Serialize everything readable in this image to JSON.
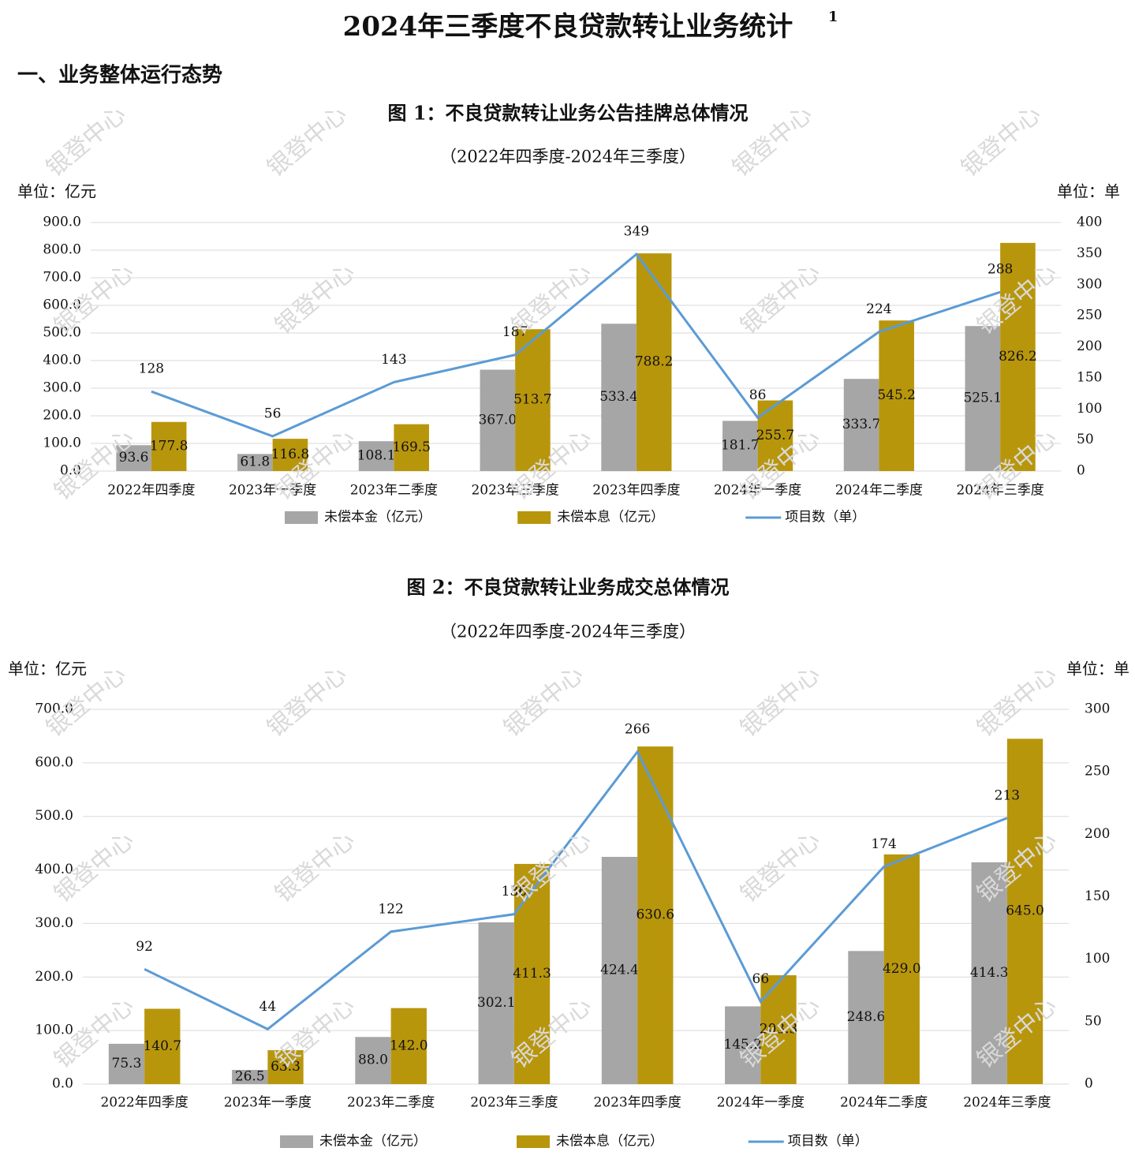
{
  "header": {
    "title": "2024年三季度不良贷款转让业务统计",
    "title_note": "1",
    "section": "一、业务整体运行态势",
    "watermark": "银登中心"
  },
  "chart_data": [
    {
      "type": "bar",
      "title": "图 1：不良贷款转让业务公告挂牌总体情况",
      "subtitle": "（2022年四季度-2024年三季度）",
      "y_unit": "单位：亿元",
      "y2_unit": "单位：单",
      "categories": [
        "2022年四季度",
        "2023年一季度",
        "2023年二季度",
        "2023年三季度",
        "2023年四季度",
        "2024年一季度",
        "2024年二季度",
        "2024年三季度"
      ],
      "series": [
        {
          "name": "未偿本金（亿元）",
          "type": "bar",
          "color": "#a6a6a6",
          "values": [
            93.6,
            61.8,
            108.1,
            367.0,
            533.4,
            181.7,
            333.7,
            525.1
          ],
          "value_labels": [
            "93.6",
            "61.8",
            "108.1",
            "367.0",
            "533.4",
            "181.7",
            "333.7",
            "525.1"
          ]
        },
        {
          "name": "未偿本息（亿元）",
          "type": "bar",
          "color": "#b8960c",
          "values": [
            177.8,
            116.8,
            169.5,
            513.7,
            788.2,
            255.7,
            545.2,
            826.2
          ],
          "value_labels": [
            "177.8",
            "116.8",
            "169.5",
            "513.7",
            "788.2",
            "255.7",
            "545.2",
            "826.2"
          ]
        },
        {
          "name": "项目数（单）",
          "type": "line",
          "axis": "y2",
          "color": "#5b9bd5",
          "values": [
            128,
            56,
            143,
            187,
            349,
            86,
            224,
            288
          ]
        }
      ],
      "ylim": [
        0,
        900
      ],
      "yticks": [
        {
          "value": 0,
          "label": "0.0"
        },
        {
          "value": 100,
          "label": "100.0"
        },
        {
          "value": 200,
          "label": "200.0"
        },
        {
          "value": 300,
          "label": "300.0"
        },
        {
          "value": 400,
          "label": "400.0"
        },
        {
          "value": 500,
          "label": "500.0"
        },
        {
          "value": 600,
          "label": "600.0"
        },
        {
          "value": 700,
          "label": "700.0"
        },
        {
          "value": 800,
          "label": "800.0"
        },
        {
          "value": 900,
          "label": "900.0"
        }
      ],
      "y2lim": [
        0,
        400
      ],
      "y2ticks": [
        0,
        50,
        100,
        150,
        200,
        250,
        300,
        350,
        400
      ],
      "grid": true,
      "legend": "bottom"
    },
    {
      "type": "bar",
      "title": "图 2：不良贷款转让业务成交总体情况",
      "subtitle": "（2022年四季度-2024年三季度）",
      "y_unit": "单位：亿元",
      "y2_unit": "单位：单",
      "categories": [
        "2022年四季度",
        "2023年一季度",
        "2023年二季度",
        "2023年三季度",
        "2023年四季度",
        "2024年一季度",
        "2024年二季度",
        "2024年三季度"
      ],
      "series": [
        {
          "name": "未偿本金（亿元）",
          "type": "bar",
          "color": "#a6a6a6",
          "values": [
            75.3,
            26.5,
            88.0,
            302.1,
            424.4,
            145.2,
            248.6,
            414.3
          ],
          "value_labels": [
            "75.3",
            "26.5",
            "88.0",
            "302.1",
            "424.4",
            "145.2",
            "248.6",
            "414.3"
          ]
        },
        {
          "name": "未偿本息（亿元）",
          "type": "bar",
          "color": "#b8960c",
          "values": [
            140.7,
            63.3,
            142.0,
            411.3,
            630.6,
            203.3,
            429.0,
            645.0
          ],
          "value_labels": [
            "140.7",
            "63.3",
            "142.0",
            "411.3",
            "630.6",
            "203.3",
            "429.0",
            "645.0"
          ]
        },
        {
          "name": "项目数（单）",
          "type": "line",
          "axis": "y2",
          "color": "#5b9bd5",
          "values": [
            92,
            44,
            122,
            136,
            266,
            66,
            174,
            213
          ]
        }
      ],
      "ylim": [
        0,
        700
      ],
      "yticks": [
        {
          "value": 0,
          "label": "0.0"
        },
        {
          "value": 100,
          "label": "100.0"
        },
        {
          "value": 200,
          "label": "200.0"
        },
        {
          "value": 300,
          "label": "300.0"
        },
        {
          "value": 400,
          "label": "400.0"
        },
        {
          "value": 500,
          "label": "500.0"
        },
        {
          "value": 600,
          "label": "600.0"
        },
        {
          "value": 700,
          "label": "700.0"
        }
      ],
      "y2lim": [
        0,
        300
      ],
      "y2ticks": [
        0,
        50,
        100,
        150,
        200,
        250,
        300
      ],
      "grid": true,
      "legend": "bottom"
    }
  ]
}
